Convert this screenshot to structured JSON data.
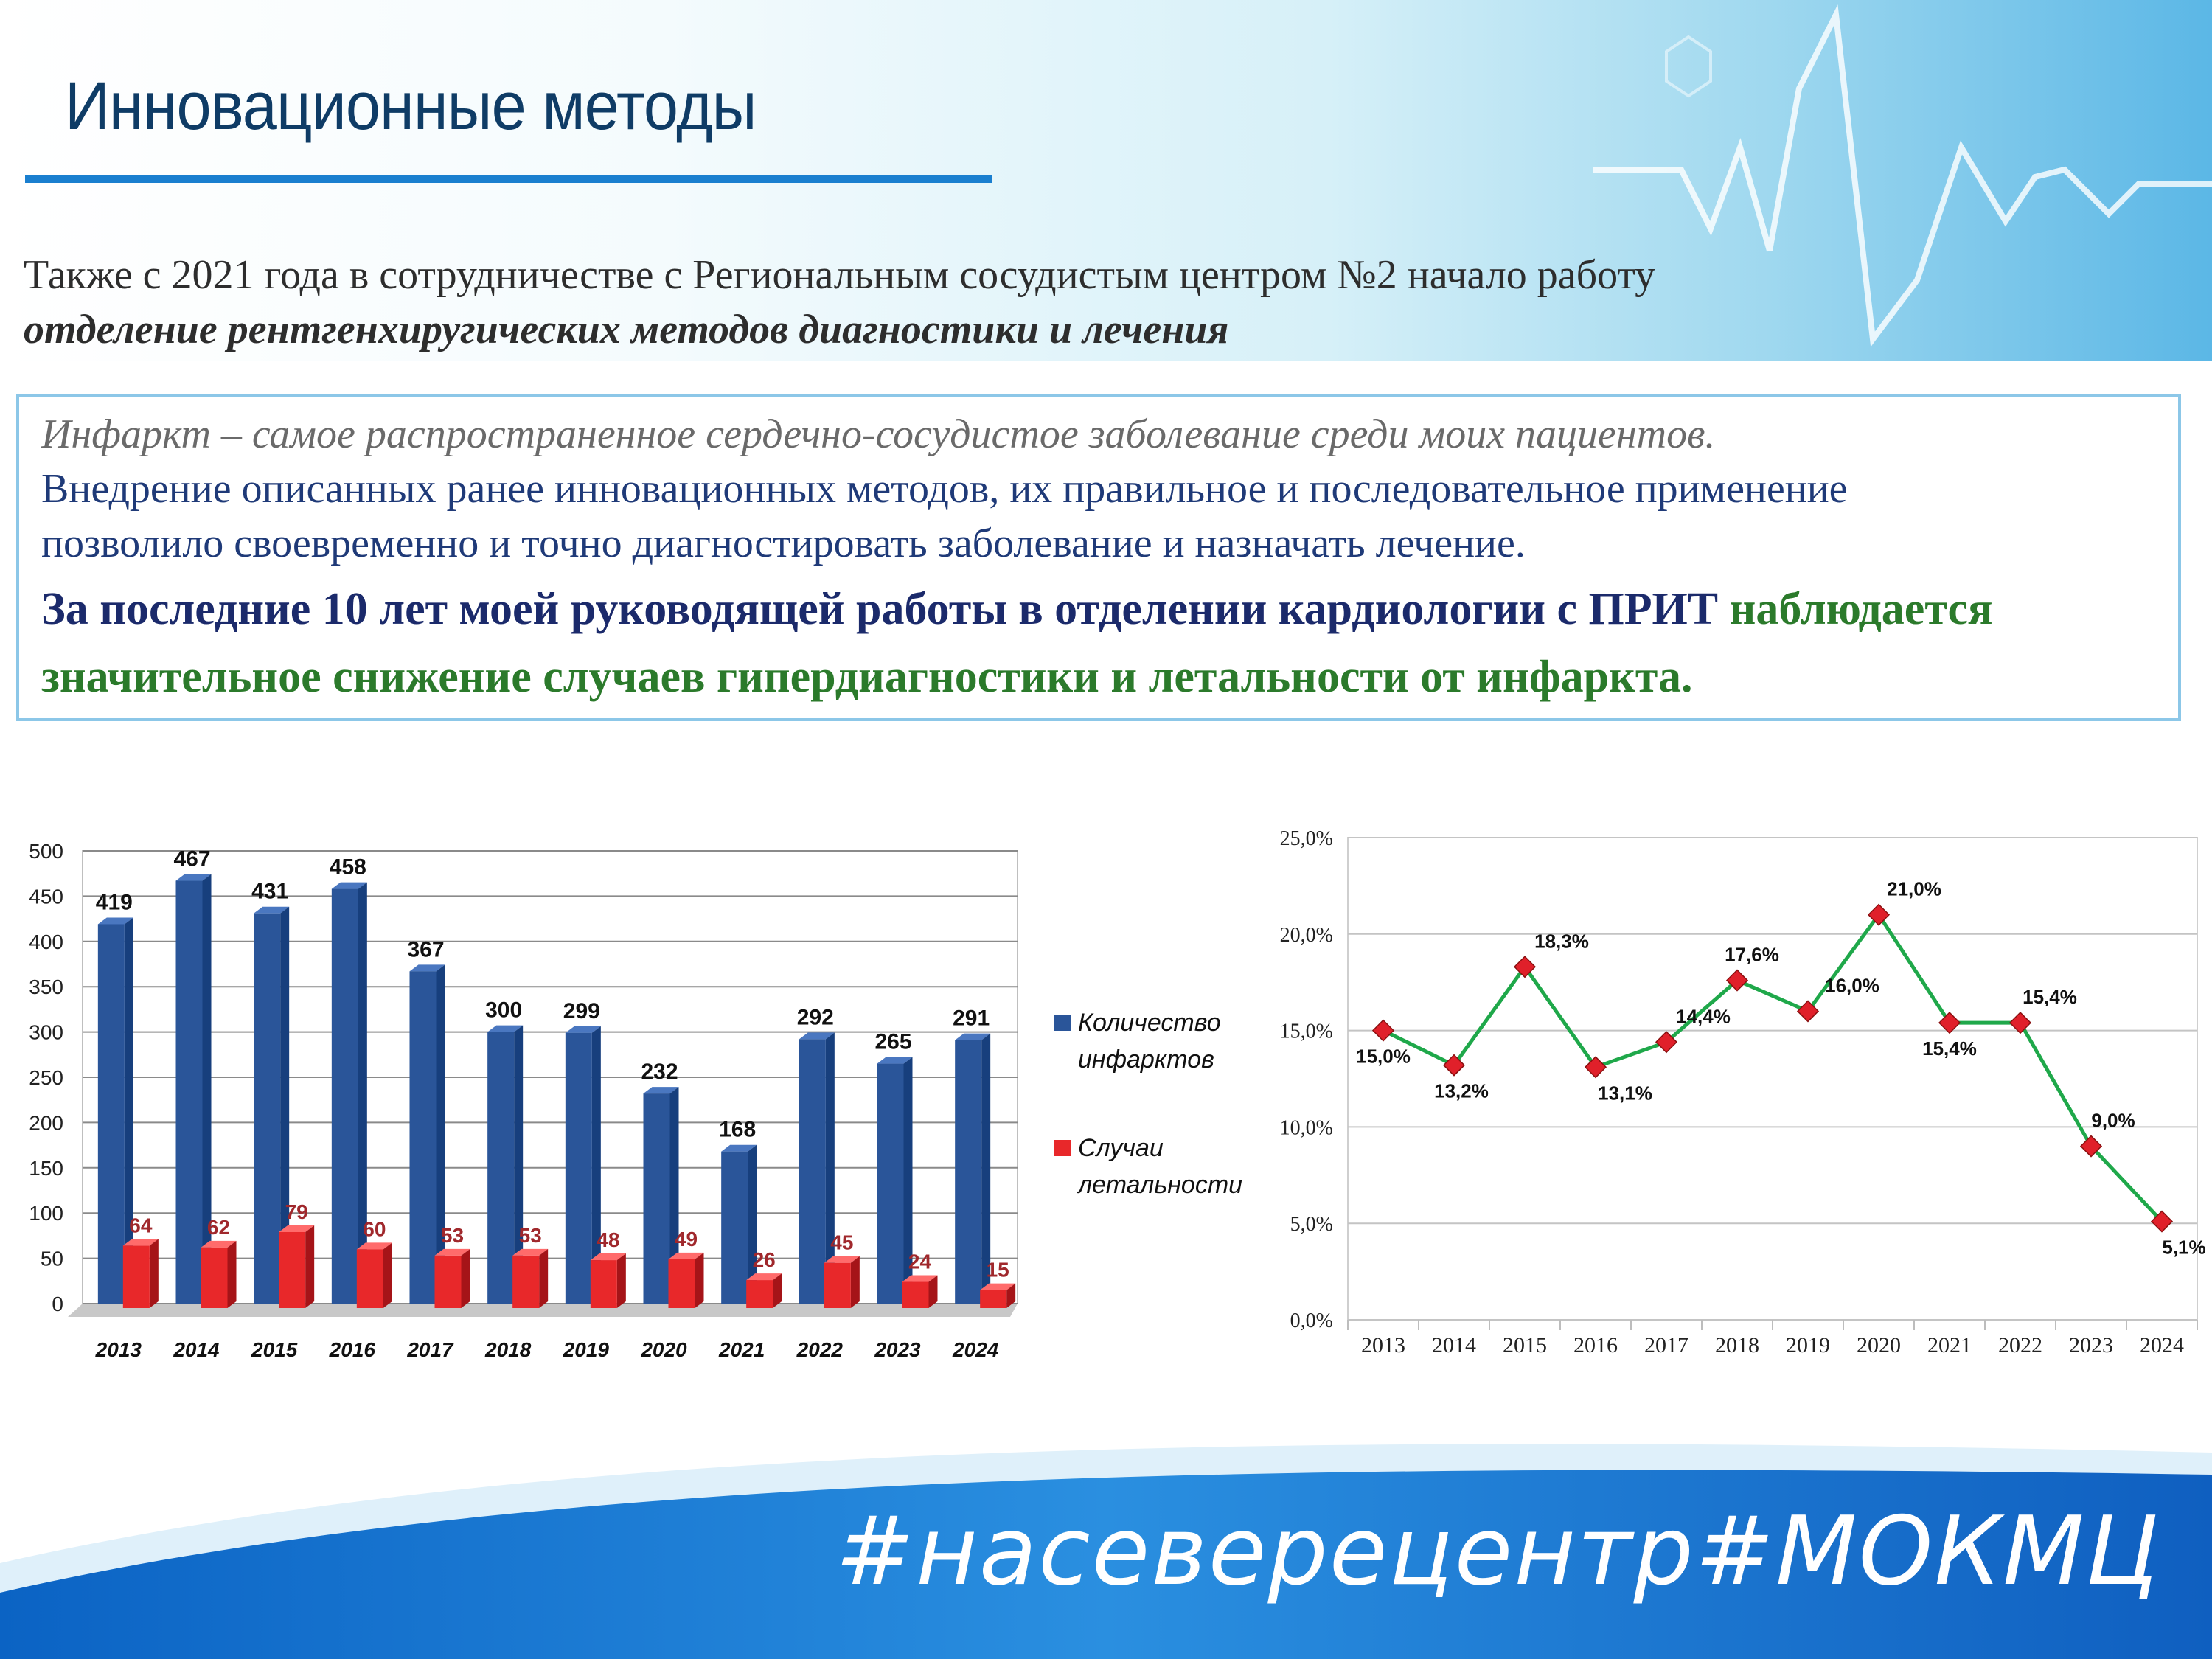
{
  "header": {
    "title": "Инновационные методы",
    "intro_line1": "Также с 2021 года в сотрудничестве с Региональным сосудистым центром №2 начало работу",
    "intro_line2": "отделение рентгенхиругических методов диагностики и лечения"
  },
  "callout": {
    "line1": "Инфаркт – самое распространенное сердечно-сосудистое заболевание среди моих пациентов.",
    "line2": "Внедрение описанных ранее инновационных методов, их правильное и последовательное применение",
    "line3": "позволило своевременно и точно диагностировать заболевание и назначать лечение.",
    "line4_part1": "За последние 10 лет моей руководящей работы в отделении кардиологии с ПРИТ",
    "line4_part2": "наблюдается",
    "line5": "значительное снижение случаев гипердиагностики и летальности от инфаркта."
  },
  "chart_data": [
    {
      "type": "bar",
      "categories": [
        "2013",
        "2014",
        "2015",
        "2016",
        "2017",
        "2018",
        "2019",
        "2020",
        "2021",
        "2022",
        "2023",
        "2024"
      ],
      "series": [
        {
          "name": "Количество инфарктов",
          "values": [
            419,
            467,
            431,
            458,
            367,
            300,
            299,
            232,
            168,
            292,
            265,
            291
          ],
          "color": "#2a5599"
        },
        {
          "name": "Случаи летальности",
          "values": [
            64,
            62,
            79,
            60,
            53,
            53,
            48,
            49,
            26,
            45,
            24,
            15
          ],
          "color": "#e8282a"
        }
      ],
      "legend_lines": [
        [
          "Количество",
          "инфарктов"
        ],
        [
          "Случаи",
          "летальности"
        ]
      ],
      "yticks": [
        "0",
        "50",
        "100",
        "150",
        "200",
        "250",
        "300",
        "350",
        "400",
        "450",
        "500"
      ],
      "ylim": [
        0,
        500
      ],
      "legend": "right",
      "grid": true
    },
    {
      "type": "line",
      "categories": [
        "2013",
        "2014",
        "2015",
        "2016",
        "2017",
        "2018",
        "2019",
        "2020",
        "2021",
        "2022",
        "2023",
        "2024"
      ],
      "values": [
        15.0,
        13.2,
        18.3,
        13.1,
        14.4,
        17.6,
        16.0,
        21.0,
        15.4,
        15.4,
        9.0,
        5.1
      ],
      "labels": [
        "15,0%",
        "13,2%",
        "18,3%",
        "13,1%",
        "14,4%",
        "17,6%",
        "16,0%",
        "21,0%",
        "15,4%",
        "15,4%",
        "9,0%",
        "5,1%"
      ],
      "yticks": [
        "0,0%",
        "5,0%",
        "10,0%",
        "15,0%",
        "20,0%",
        "25,0%"
      ],
      "ylim": [
        0,
        25
      ],
      "line_color": "#1fa84a",
      "marker_color": "#e0202a",
      "grid": true
    }
  ],
  "footer": {
    "hashtag": "#насеверецентр#МОКМЦ"
  }
}
